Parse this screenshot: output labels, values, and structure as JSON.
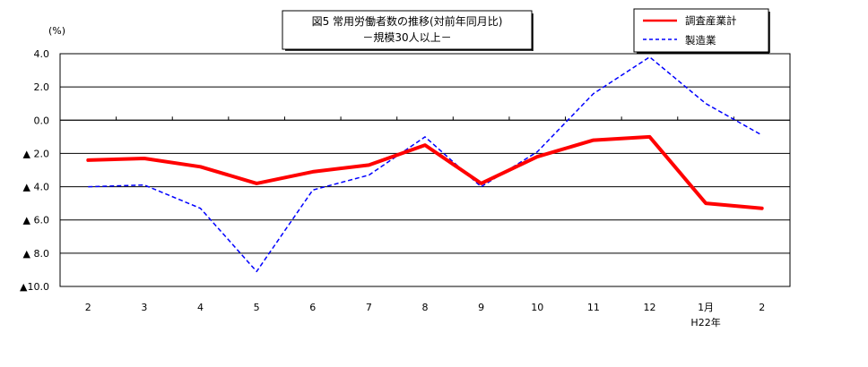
{
  "chart_data": {
    "type": "line",
    "title": "図5 常用労働者数の推移(対前年同月比)",
    "subtitle": "－規模30人以上－",
    "ylabel": "(%)",
    "ylim": [
      -10,
      4
    ],
    "yticks": [
      4,
      2,
      0,
      -2,
      -4,
      -6,
      -8,
      -10
    ],
    "ytick_labels": [
      "4.0",
      "2.0",
      "0.0",
      "▲ 2.0",
      "▲ 4.0",
      "▲ 6.0",
      "▲ 8.0",
      "▲10.0"
    ],
    "categories": [
      "2",
      "3",
      "4",
      "5",
      "6",
      "7",
      "8",
      "9",
      "10",
      "11",
      "12",
      "1月",
      "2"
    ],
    "category_sublabels": {
      "11": "H22年"
    },
    "grid": true,
    "legend_position": "top-right",
    "series": [
      {
        "name": "調査産業計",
        "color": "#ff0000",
        "style": "solid",
        "values": [
          -2.4,
          -2.3,
          -2.8,
          -3.8,
          -3.1,
          -2.7,
          -1.5,
          -3.8,
          -2.2,
          -1.2,
          -1.0,
          -5.0,
          -5.3
        ]
      },
      {
        "name": "製造業",
        "color": "#0000ff",
        "style": "dashed",
        "values": [
          -4.0,
          -3.9,
          -5.3,
          -9.1,
          -4.2,
          -3.3,
          -1.0,
          -4.0,
          -1.9,
          1.6,
          3.8,
          1.0,
          -0.9
        ]
      }
    ]
  }
}
